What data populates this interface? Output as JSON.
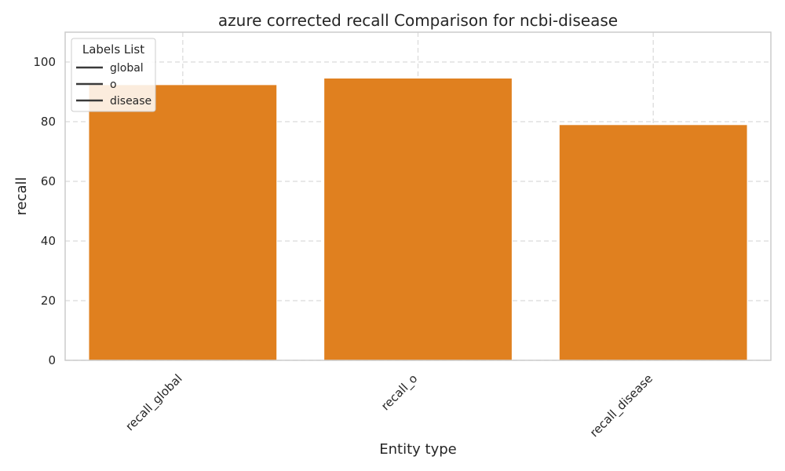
{
  "chart_data": {
    "type": "bar",
    "title": "azure corrected recall Comparison for ncbi-disease",
    "xlabel": "Entity type",
    "ylabel": "recall",
    "categories": [
      "recall_global",
      "recall_o",
      "recall_disease"
    ],
    "values": [
      92.4,
      94.6,
      79.0
    ],
    "ylim": [
      0,
      110
    ],
    "yticks": [
      0,
      20,
      40,
      60,
      80,
      100
    ],
    "bar_color": "#e0801f",
    "grid": true,
    "legend": {
      "title": "Labels List",
      "placement": "top-left",
      "entries": [
        "global",
        "o",
        "disease"
      ]
    }
  }
}
